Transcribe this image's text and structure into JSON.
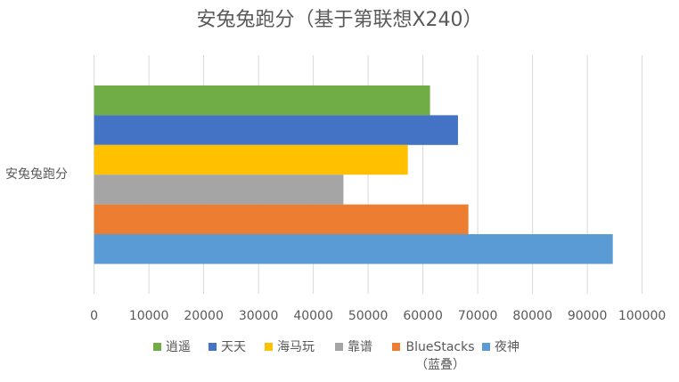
{
  "chart_data": {
    "type": "bar",
    "orientation": "horizontal",
    "title": "安兔兔跑分（基于第联想X240）",
    "categories": [
      "安兔兔跑分"
    ],
    "series": [
      {
        "name": "逍遥",
        "color": "#70AD47",
        "values": [
          61300
        ]
      },
      {
        "name": "天天",
        "color": "#4472C4",
        "values": [
          66400
        ]
      },
      {
        "name": "海马玩",
        "color": "#FFC000",
        "values": [
          57250
        ]
      },
      {
        "name": "靠谱",
        "color": "#A5A5A5",
        "values": [
          45500
        ]
      },
      {
        "name": "BlueStacks（蓝叠）",
        "color": "#ED7D31",
        "values": [
          68300
        ]
      },
      {
        "name": "夜神",
        "color": "#5B9BD5",
        "values": [
          94650
        ]
      }
    ],
    "xlim": [
      0,
      100000
    ],
    "xticks": [
      "0",
      "10000",
      "20000",
      "30000",
      "40000",
      "50000",
      "60000",
      "70000",
      "80000",
      "90000",
      "100000"
    ],
    "grid": true,
    "legend": "bottom",
    "xlabel": "",
    "ylabel": ""
  }
}
